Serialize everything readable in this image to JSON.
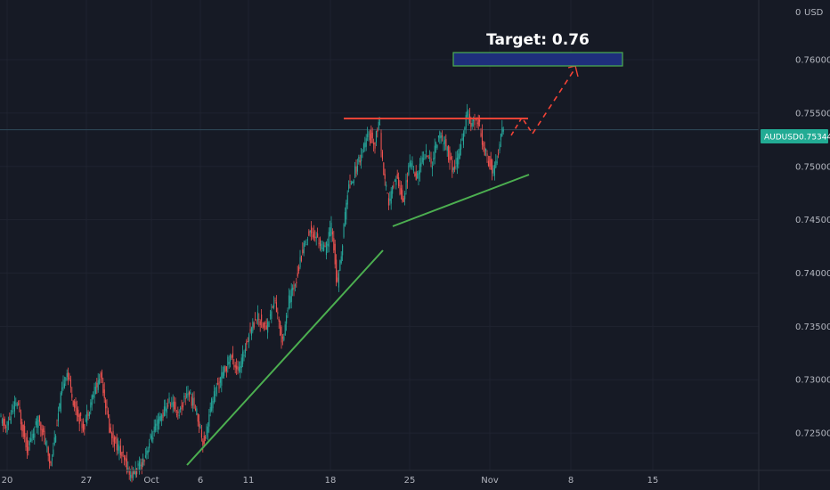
{
  "chart_data": {
    "type": "candlestick",
    "symbol": "AUDUSD",
    "currency_label": "USD",
    "currency_value": "0",
    "current_price": "0.75344",
    "target_label": "Target: 0.76",
    "y_ticks": [
      "0.76000",
      "0.75500",
      "0.75000",
      "0.74500",
      "0.74000",
      "0.73500",
      "0.73000",
      "0.72500"
    ],
    "ylim": [
      0.7215,
      0.7656
    ],
    "x_ticks": [
      "20",
      "27",
      "Oct",
      "6",
      "11",
      "18",
      "25",
      "Nov",
      "8",
      "15"
    ],
    "price_path": [
      [
        0,
        0.7265
      ],
      [
        8,
        0.7255
      ],
      [
        20,
        0.728
      ],
      [
        32,
        0.7235
      ],
      [
        45,
        0.7265
      ],
      [
        58,
        0.722
      ],
      [
        70,
        0.7285
      ],
      [
        76,
        0.731
      ],
      [
        85,
        0.7275
      ],
      [
        95,
        0.7255
      ],
      [
        105,
        0.7285
      ],
      [
        115,
        0.7305
      ],
      [
        125,
        0.725
      ],
      [
        135,
        0.7235
      ],
      [
        148,
        0.721
      ],
      [
        160,
        0.722
      ],
      [
        172,
        0.7248
      ],
      [
        182,
        0.7265
      ],
      [
        192,
        0.728
      ],
      [
        202,
        0.7268
      ],
      [
        212,
        0.729
      ],
      [
        222,
        0.727
      ],
      [
        230,
        0.724
      ],
      [
        240,
        0.7282
      ],
      [
        250,
        0.7302
      ],
      [
        260,
        0.7322
      ],
      [
        270,
        0.7308
      ],
      [
        280,
        0.7342
      ],
      [
        290,
        0.736
      ],
      [
        300,
        0.7348
      ],
      [
        310,
        0.7375
      ],
      [
        318,
        0.7335
      ],
      [
        326,
        0.7375
      ],
      [
        334,
        0.7395
      ],
      [
        342,
        0.7425
      ],
      [
        350,
        0.744
      ],
      [
        358,
        0.7432
      ],
      [
        366,
        0.742
      ],
      [
        374,
        0.7445
      ],
      [
        380,
        0.7385
      ],
      [
        386,
        0.743
      ],
      [
        392,
        0.748
      ],
      [
        400,
        0.7495
      ],
      [
        408,
        0.7515
      ],
      [
        416,
        0.753
      ],
      [
        422,
        0.752
      ],
      [
        427,
        0.7545
      ],
      [
        432,
        0.749
      ],
      [
        438,
        0.7465
      ],
      [
        446,
        0.7492
      ],
      [
        454,
        0.7468
      ],
      [
        462,
        0.7505
      ],
      [
        470,
        0.749
      ],
      [
        478,
        0.7515
      ],
      [
        486,
        0.7502
      ],
      [
        494,
        0.753
      ],
      [
        502,
        0.752
      ],
      [
        510,
        0.7495
      ],
      [
        518,
        0.7515
      ],
      [
        526,
        0.755
      ],
      [
        532,
        0.7538
      ],
      [
        538,
        0.7545
      ],
      [
        544,
        0.752
      ],
      [
        550,
        0.7505
      ],
      [
        556,
        0.7495
      ],
      [
        562,
        0.7518
      ],
      [
        566,
        0.75344
      ]
    ]
  }
}
